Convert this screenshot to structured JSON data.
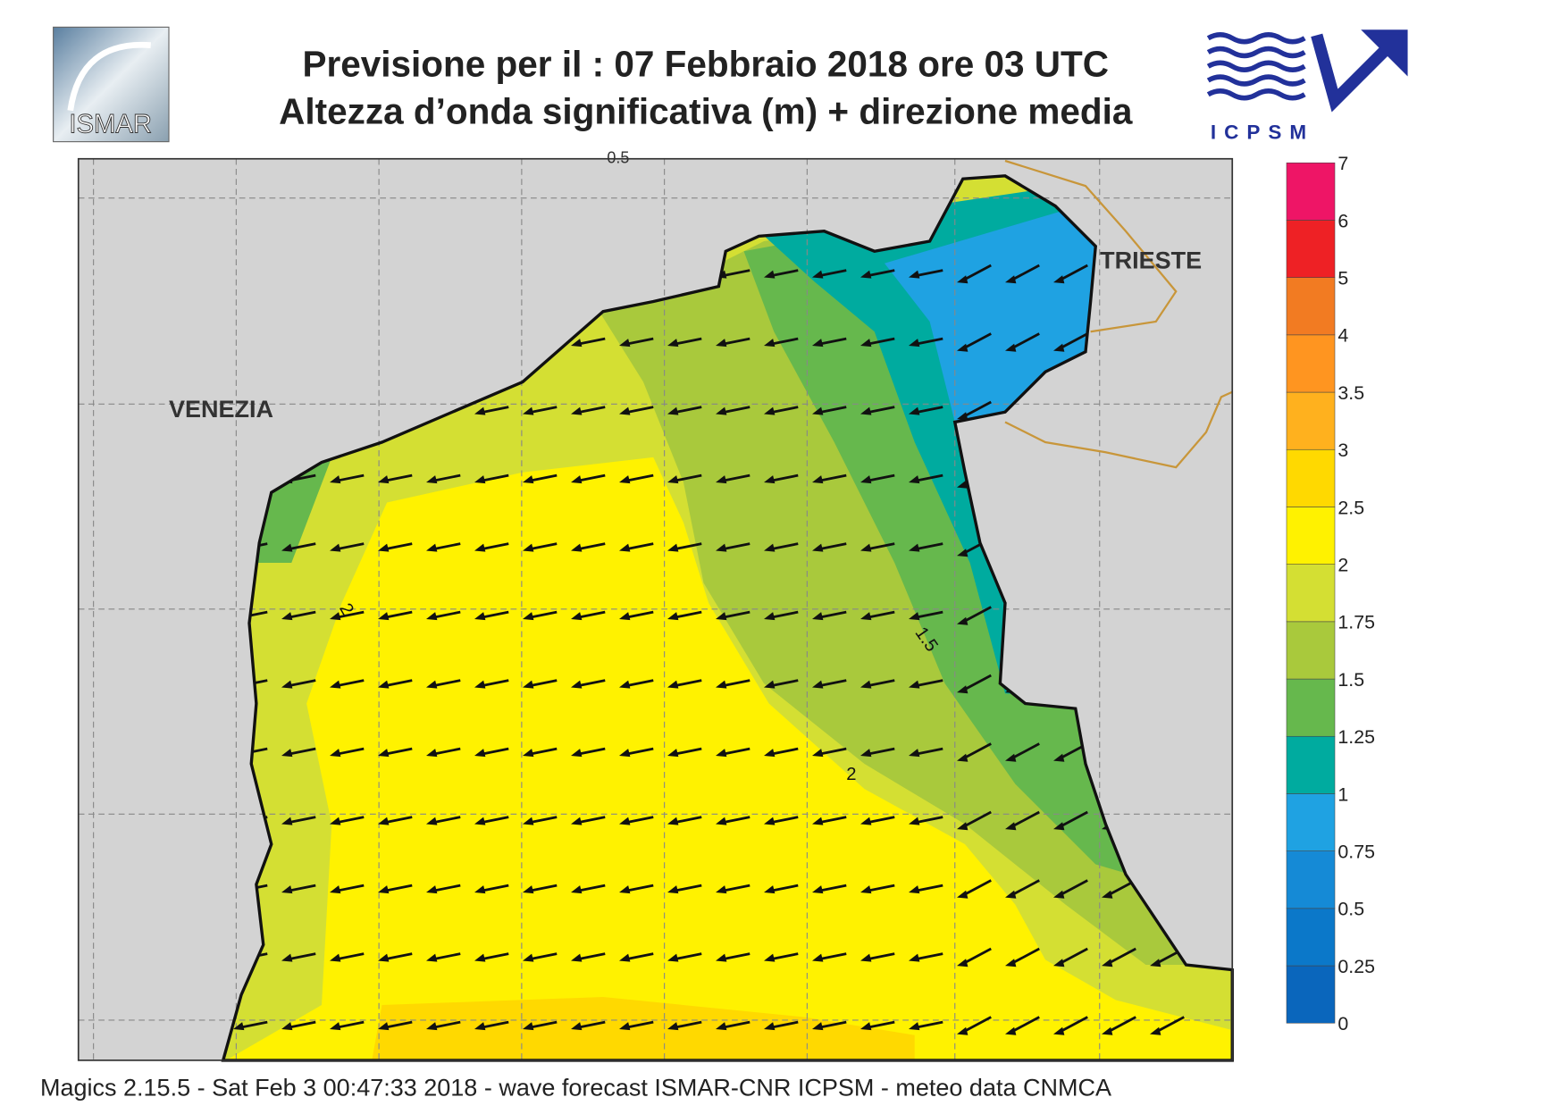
{
  "header": {
    "title_line1": "Previsione per il  :  07  Febbraio 2018   ore 03 UTC",
    "title_line2": "Altezza d’onda significativa (m) + direzione media",
    "logo_left": "ISMAR",
    "logo_right": "ICPSM"
  },
  "map": {
    "cities": [
      "VENEZIA",
      "TRIESTE"
    ],
    "contour_labels": [
      "0.5",
      "2",
      "1.5",
      "2"
    ]
  },
  "colorbar": {
    "labels": [
      "0",
      "0.25",
      "0.5",
      "0.75",
      "1",
      "1.25",
      "1.5",
      "1.75",
      "2",
      "2.5",
      "3",
      "3.5",
      "4",
      "5",
      "6",
      "7"
    ],
    "colors": [
      "#0a66bc",
      "#0b78c9",
      "#158ad6",
      "#1fa2e2",
      "#00ab9f",
      "#66b84d",
      "#a9c93c",
      "#d4df33",
      "#fff200",
      "#ffd900",
      "#ffb11e",
      "#ff9520",
      "#f27b22",
      "#ee2125",
      "#ee1566"
    ]
  },
  "footer": "Magics 2.15.5 - Sat Feb  3 00:47:33 2018 - wave forecast  ISMAR-CNR  ICPSM - meteo data   CNMCA"
}
